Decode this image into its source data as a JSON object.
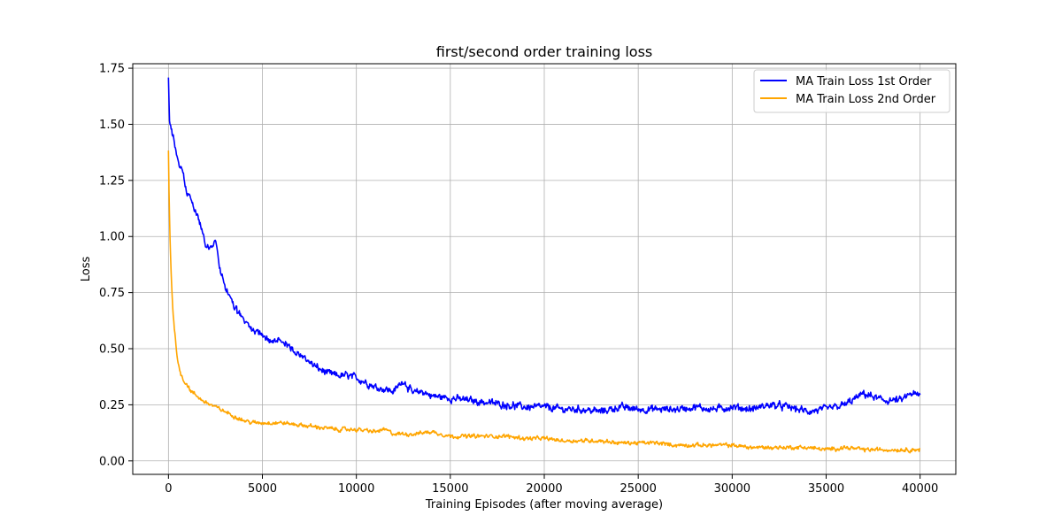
{
  "chart_data": {
    "type": "line",
    "title": "first/second order training loss",
    "xlabel": "Training Episodes (after moving average)",
    "ylabel": "Loss",
    "xlim": [
      -1900,
      41900
    ],
    "ylim": [
      -0.06,
      1.77
    ],
    "xticks": [
      0,
      5000,
      10000,
      15000,
      20000,
      25000,
      30000,
      35000,
      40000
    ],
    "xtick_labels": [
      "0",
      "5000",
      "10000",
      "15000",
      "20000",
      "25000",
      "30000",
      "35000",
      "40000"
    ],
    "yticks": [
      0.0,
      0.25,
      0.5,
      0.75,
      1.0,
      1.25,
      1.5,
      1.75
    ],
    "ytick_labels": [
      "0.00",
      "0.25",
      "0.50",
      "0.75",
      "1.00",
      "1.25",
      "1.50",
      "1.75"
    ],
    "grid": true,
    "legend_position": "top-right",
    "series": [
      {
        "name": "MA Train Loss 1st Order",
        "color": "#0000ff",
        "noise": 0.022,
        "x": [
          0,
          50,
          150,
          300,
          500,
          800,
          1000,
          1200,
          1500,
          1800,
          2000,
          2300,
          2500,
          2800,
          3000,
          3500,
          4000,
          4500,
          5000,
          5500,
          6000,
          6500,
          7000,
          7500,
          8000,
          8500,
          9000,
          9500,
          10000,
          10500,
          11000,
          11500,
          12000,
          12500,
          13000,
          13500,
          14000,
          15000,
          16000,
          17000,
          18000,
          19000,
          20000,
          21000,
          22000,
          23000,
          24000,
          25000,
          26000,
          27000,
          28000,
          29000,
          30000,
          31000,
          32000,
          33000,
          34000,
          35000,
          36000,
          37000,
          38000,
          39000,
          39500,
          40000
        ],
        "y": [
          1.7,
          1.52,
          1.48,
          1.42,
          1.35,
          1.26,
          1.2,
          1.16,
          1.1,
          1.03,
          0.96,
          0.94,
          0.98,
          0.83,
          0.79,
          0.68,
          0.63,
          0.58,
          0.56,
          0.53,
          0.54,
          0.5,
          0.47,
          0.44,
          0.41,
          0.39,
          0.38,
          0.38,
          0.37,
          0.35,
          0.33,
          0.32,
          0.31,
          0.36,
          0.3,
          0.31,
          0.29,
          0.28,
          0.27,
          0.26,
          0.25,
          0.24,
          0.24,
          0.23,
          0.23,
          0.22,
          0.24,
          0.23,
          0.23,
          0.23,
          0.24,
          0.23,
          0.24,
          0.23,
          0.25,
          0.24,
          0.22,
          0.23,
          0.25,
          0.3,
          0.27,
          0.27,
          0.3,
          0.29
        ]
      },
      {
        "name": "MA Train Loss 2nd Order",
        "color": "#ffa500",
        "noise": 0.012,
        "x": [
          0,
          30,
          80,
          150,
          250,
          400,
          500,
          600,
          800,
          1000,
          1200,
          1500,
          1800,
          2000,
          2500,
          3000,
          3500,
          4000,
          4500,
          5000,
          5500,
          6000,
          7000,
          8000,
          9000,
          10000,
          11000,
          11500,
          12000,
          13000,
          14000,
          15000,
          16000,
          17000,
          18000,
          19000,
          20000,
          21000,
          22000,
          23000,
          24000,
          25000,
          26000,
          27000,
          28000,
          29000,
          30000,
          31000,
          32000,
          33000,
          34000,
          35000,
          36000,
          37000,
          38000,
          39000,
          40000
        ],
        "y": [
          1.38,
          1.2,
          1.0,
          0.82,
          0.65,
          0.52,
          0.44,
          0.4,
          0.36,
          0.34,
          0.31,
          0.29,
          0.27,
          0.26,
          0.24,
          0.22,
          0.2,
          0.18,
          0.17,
          0.17,
          0.17,
          0.17,
          0.16,
          0.15,
          0.14,
          0.14,
          0.13,
          0.14,
          0.12,
          0.12,
          0.13,
          0.11,
          0.11,
          0.11,
          0.11,
          0.1,
          0.1,
          0.09,
          0.09,
          0.09,
          0.08,
          0.08,
          0.08,
          0.07,
          0.07,
          0.07,
          0.07,
          0.06,
          0.06,
          0.06,
          0.06,
          0.05,
          0.06,
          0.05,
          0.05,
          0.05,
          0.05
        ]
      }
    ]
  }
}
